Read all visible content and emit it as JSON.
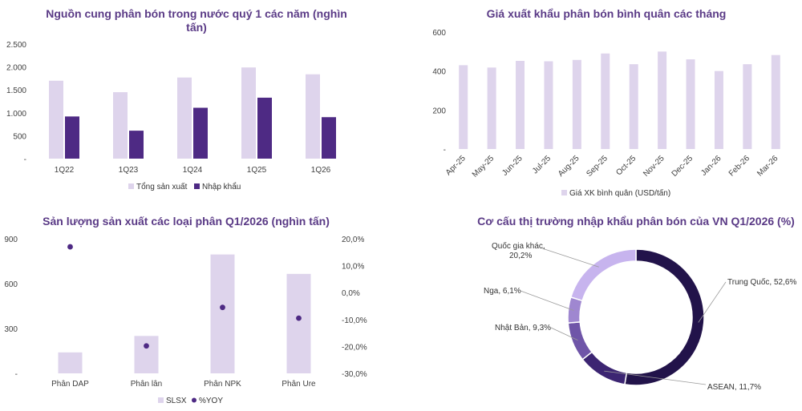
{
  "chart_data": [
    {
      "type": "bar",
      "title": "Nguồn cung phân bón trong nước quý 1 các năm (nghìn tấn)",
      "title_lines": [
        "Nguồn cung phân bón trong nước quý 1 các năm (nghìn",
        "tấn)"
      ],
      "categories": [
        "1Q22",
        "1Q23",
        "1Q24",
        "1Q25",
        "1Q26"
      ],
      "series": [
        {
          "name": "Tổng sản xuất",
          "values": [
            1700,
            1450,
            1770,
            1990,
            1840
          ],
          "color": "#ded4ec"
        },
        {
          "name": "Nhập khẩu",
          "values": [
            920,
            610,
            1110,
            1330,
            905
          ],
          "color": "#4e2a84"
        }
      ],
      "ylim": [
        0,
        2500
      ],
      "yticks": [
        0,
        500,
        1000,
        1500,
        2000,
        2500
      ],
      "ytick_labels": [
        "-",
        "500",
        "1.000",
        "1.500",
        "2.000",
        "2.500"
      ],
      "legend": "bottom",
      "grid": false
    },
    {
      "type": "bar",
      "title": "Giá xuất khẩu phân bón bình quân các tháng",
      "categories": [
        "Apr-25",
        "May-25",
        "Jun-25",
        "Jul-25",
        "Aug-25",
        "Sep-25",
        "Oct-25",
        "Nov-25",
        "Dec-25",
        "Jan-26",
        "Feb-26",
        "Mar-26"
      ],
      "series": [
        {
          "name": "Giá XK bình quân (USD/tấn)",
          "values": [
            430,
            418,
            452,
            450,
            457,
            490,
            435,
            500,
            460,
            400,
            435,
            482
          ],
          "color": "#ded4ec"
        }
      ],
      "ylim": [
        0,
        600
      ],
      "yticks": [
        0,
        200,
        400,
        600
      ],
      "ytick_labels": [
        "-",
        "200",
        "400",
        "600"
      ],
      "legend": "bottom",
      "grid": false
    },
    {
      "type": "bar",
      "title": "Sản lượng sản xuất các loại phân Q1/2026 (nghìn tấn)",
      "categories": [
        "Phân DAP",
        "Phân lân",
        "Phân NPK",
        "Phân Ure"
      ],
      "series": [
        {
          "name": "SLSX",
          "values": [
            140,
            250,
            795,
            665
          ],
          "color": "#ded4ec",
          "axis": "left"
        },
        {
          "name": "%YOY",
          "values": [
            17.0,
            -19.8,
            -5.5,
            -9.5
          ],
          "color": "#4e2a84",
          "axis": "right",
          "type": "scatter"
        }
      ],
      "ylim": [
        0,
        900
      ],
      "yticks": [
        0,
        300,
        600,
        900
      ],
      "ytick_labels": [
        "-",
        "300",
        "600",
        "900"
      ],
      "y2lim": [
        -30,
        20
      ],
      "y2ticks": [
        -30,
        -20,
        -10,
        0,
        10,
        20
      ],
      "y2tick_labels": [
        "-30,0%",
        "-20,0%",
        "-10,0%",
        "0,0%",
        "10,0%",
        "20,0%"
      ],
      "legend": "bottom",
      "grid": false
    },
    {
      "type": "pie",
      "donut": true,
      "title": "Cơ cấu thị trường nhập khẩu phân bón của VN Q1/2026 (%)",
      "slices": [
        {
          "name": "Trung Quốc",
          "value": 52.6,
          "label": "Trung Quốc, 52,6%",
          "color": "#22134a"
        },
        {
          "name": "ASEAN",
          "value": 11.7,
          "label": "ASEAN, 11,7%",
          "color": "#3c2572"
        },
        {
          "name": "Nhật Bản",
          "value": 9.3,
          "label": "Nhật Bản, 9,3%",
          "color": "#6f55a8"
        },
        {
          "name": "Nga",
          "value": 6.1,
          "label": "Nga, 6,1%",
          "color": "#9f87d0"
        },
        {
          "name": "Quốc gia khác",
          "value": 20.2,
          "label": "Quốc gia khác, 20,2%",
          "label_lines": [
            "Quốc gia khác,",
            "20,2%"
          ],
          "color": "#c7b4ee"
        }
      ],
      "legend": "none"
    }
  ]
}
